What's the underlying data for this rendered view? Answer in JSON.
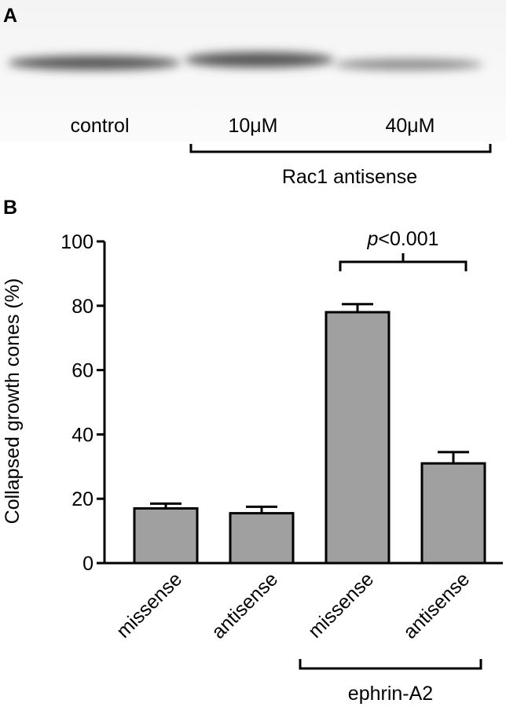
{
  "panel_a": {
    "label": "A",
    "lanes": [
      "control",
      "10μM",
      "40μM"
    ],
    "group": "Rac1 antisense"
  },
  "chart_data": {
    "type": "bar",
    "panel_label": "B",
    "y_label": "Collapsed growth cones (%)",
    "categories": [
      "missense",
      "antisense",
      "missense",
      "antisense"
    ],
    "values": [
      17,
      15.5,
      78,
      31
    ],
    "errors": [
      1.5,
      2,
      2.5,
      3.5
    ],
    "color": "#a0a0a0",
    "ylim": [
      0,
      100
    ],
    "yticks": [
      0,
      20,
      40,
      60,
      80,
      100
    ],
    "group_label": "ephrin-A2",
    "significance": {
      "symbol": "p",
      "text": "<0.001"
    }
  }
}
